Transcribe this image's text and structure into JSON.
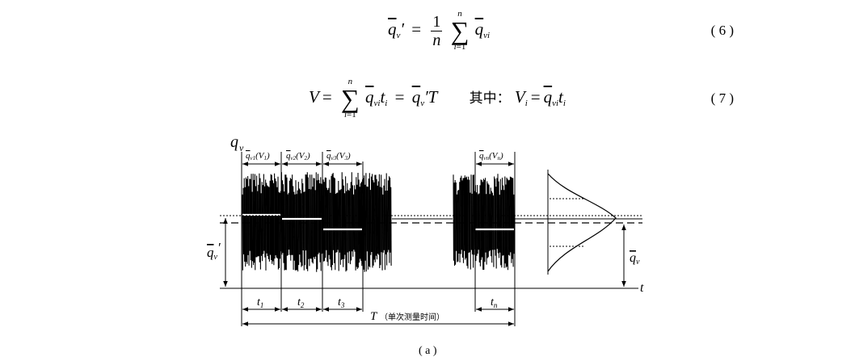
{
  "equations": [
    {
      "number": "( 6 )"
    },
    {
      "number": "( 7 )",
      "note": "其中："
    }
  ],
  "figure": {
    "axis_y": "q",
    "axis_y_sub": "v",
    "axis_x": "t",
    "segments_top": [
      {
        "sub": "v1",
        "paren": "(V",
        "psub": "1",
        "close": ")"
      },
      {
        "sub": "v2",
        "paren": "(V",
        "psub": "2",
        "close": ")"
      },
      {
        "sub": "v3",
        "paren": "(V",
        "psub": "3",
        "close": ")"
      },
      {
        "sub": "vn",
        "paren": "(V",
        "psub": "n",
        "close": ")"
      }
    ],
    "t_labels": [
      {
        "main": "t",
        "sub": "1"
      },
      {
        "main": "t",
        "sub": "2"
      },
      {
        "main": "t",
        "sub": "3"
      },
      {
        "main": "t",
        "sub": "n"
      }
    ],
    "T_label": "T",
    "T_note": "（单次测量时间）",
    "left_label": "q",
    "left_sub": "v",
    "right_label": "q",
    "right_sub": "v",
    "caption": "( a )"
  }
}
